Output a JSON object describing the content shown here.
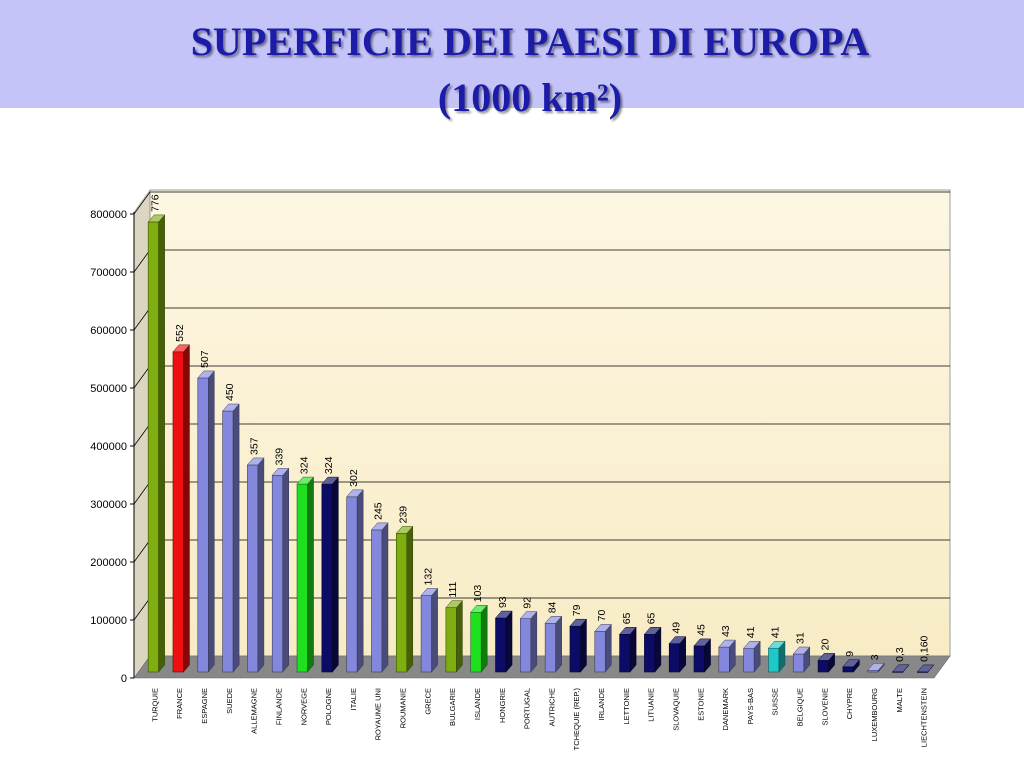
{
  "title": {
    "line1": "SUPERFICIE DEI PAESI DI EUROPA",
    "line2": "(1000 km²)"
  },
  "chart_data": {
    "type": "bar",
    "title": "SUPERFICIE DEI PAESI DI EUROPA (1000 km²)",
    "xlabel": "",
    "ylabel": "",
    "ylim": [
      0,
      800000
    ],
    "yticks": [
      "0",
      "100000",
      "200000",
      "300000",
      "400000",
      "500000",
      "600000",
      "700000",
      "800000"
    ],
    "grid": true,
    "legend": "none",
    "categories": [
      "TURQUIE",
      "FRANCE",
      "ESPAGNE",
      "SUEDE",
      "ALLEMAGNE",
      "FINLANDE",
      "NORVEGE",
      "POLOGNE",
      "ITALIE",
      "ROYAUME UNI",
      "ROUMANIE",
      "GRECE",
      "BULGARIE",
      "ISLANDE",
      "HONGRIE",
      "PORTUGAL",
      "AUTRICHE",
      "TCHEQUIE (REP.)",
      "IRLANDE",
      "LETTONIE",
      "LITUANIE",
      "SLOVAQUIE",
      "ESTONIE",
      "DANEMARK",
      "PAYS-BAS",
      "SUISSE",
      "BELGIQUE",
      "SLOVENIE",
      "CHYPRE",
      "LUXEMBOURG",
      "MALTE",
      "LIECHTENSTEIN"
    ],
    "values": [
      776000,
      552000,
      507000,
      450000,
      357000,
      339000,
      324000,
      324000,
      302000,
      245000,
      239000,
      132000,
      111000,
      103000,
      93000,
      92000,
      84000,
      79000,
      70000,
      65000,
      65000,
      49000,
      45000,
      43000,
      41000,
      41000,
      31000,
      20000,
      9000,
      3000,
      300,
      160
    ],
    "labels": [
      "776",
      "552",
      "507",
      "450",
      "357",
      "339",
      "324",
      "324",
      "302",
      "245",
      "239",
      "132",
      "111",
      "103",
      "93",
      "92",
      "84",
      "79",
      "70",
      "65",
      "65",
      "49",
      "45",
      "43",
      "41",
      "41",
      "31",
      "20",
      "9",
      "3",
      "0,3",
      "0,160"
    ],
    "colors": [
      "#7fae10",
      "#ee1010",
      "#8488dc",
      "#8488dc",
      "#8488dc",
      "#8488dc",
      "#1ee01e",
      "#0c0c66",
      "#8488dc",
      "#8488dc",
      "#7fae10",
      "#8488dc",
      "#7fae10",
      "#1ee01e",
      "#0c0c66",
      "#8488dc",
      "#8488dc",
      "#0c0c66",
      "#8488dc",
      "#0c0c66",
      "#0c0c66",
      "#0c0c66",
      "#0c0c66",
      "#8488dc",
      "#8488dc",
      "#1ec8c8",
      "#8488dc",
      "#0c0c66",
      "#0c0c66",
      "#8488dc",
      "#0c0c66",
      "#0c0c66"
    ]
  }
}
